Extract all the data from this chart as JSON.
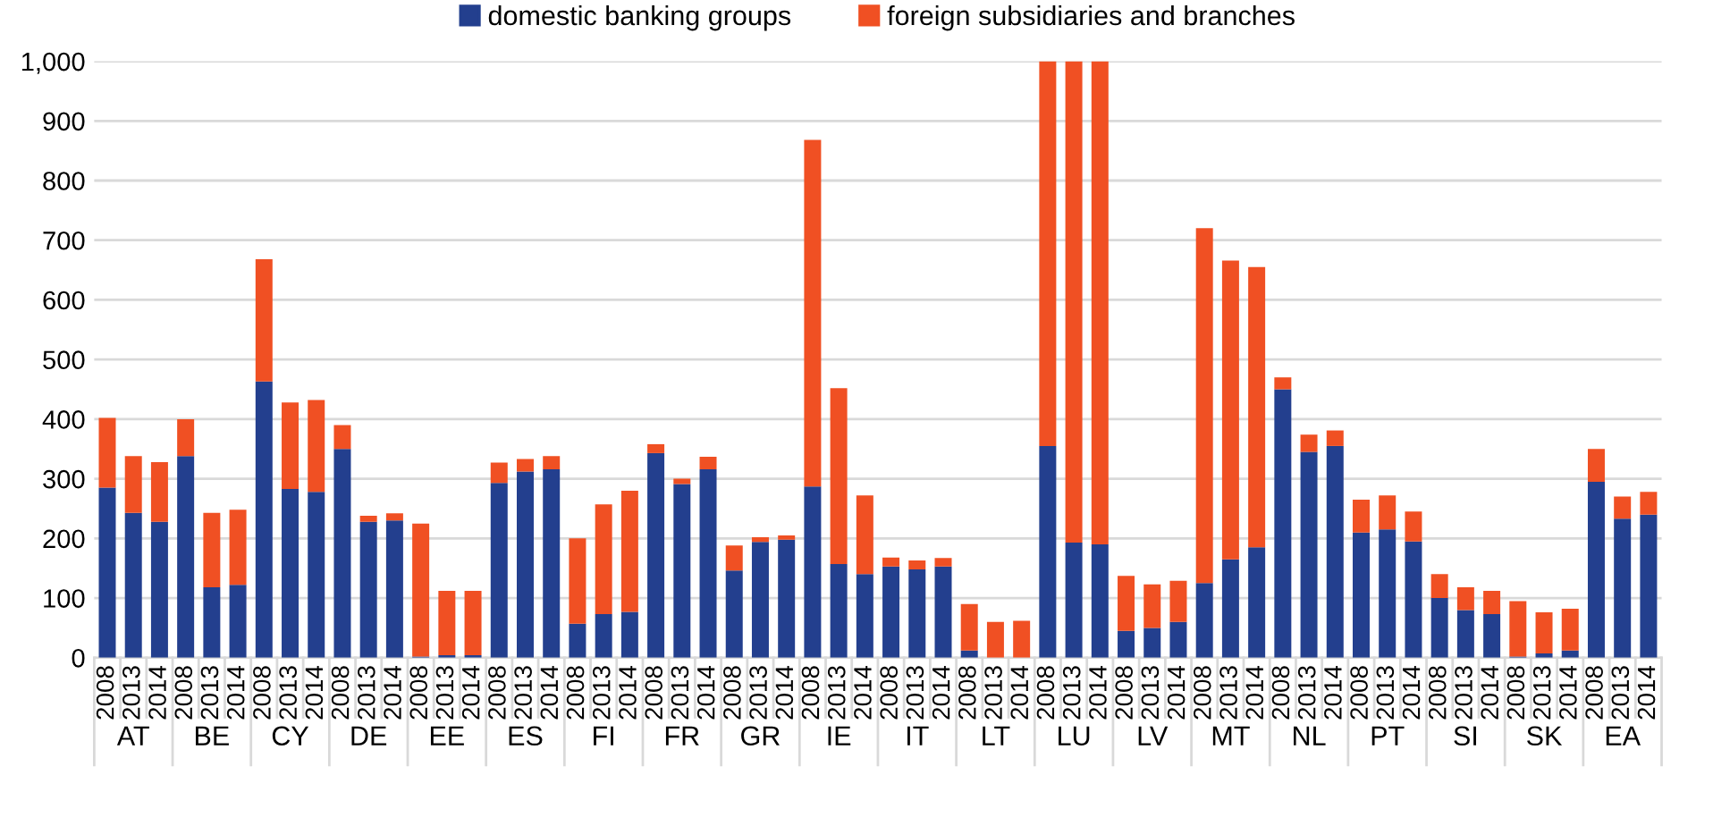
{
  "chart_data": {
    "type": "bar",
    "stacked": true,
    "categories": [
      "2008",
      "2013",
      "2014",
      "2008",
      "2013",
      "2014",
      "2008",
      "2013",
      "2014",
      "2008",
      "2013",
      "2014",
      "2008",
      "2013",
      "2014",
      "2008",
      "2013",
      "2014",
      "2008",
      "2013",
      "2014",
      "2008",
      "2013",
      "2014",
      "2008",
      "2013",
      "2014",
      "2008",
      "2013",
      "2014",
      "2008",
      "2013",
      "2014",
      "2008",
      "2013",
      "2014",
      "2008",
      "2013",
      "2014",
      "2008",
      "2013",
      "2014",
      "2008",
      "2013",
      "2014",
      "2008",
      "2013",
      "2014",
      "2008",
      "2013",
      "2014",
      "2008",
      "2013",
      "2014",
      "2008",
      "2013",
      "2014",
      "2008",
      "2013",
      "2014"
    ],
    "series": [
      {
        "name": "domestic banking groups",
        "color": "#233f8e",
        "values": [
          285,
          243,
          228,
          338,
          118,
          122,
          463,
          283,
          278,
          350,
          228,
          230,
          2,
          4,
          4,
          293,
          312,
          316,
          57,
          73,
          77,
          343,
          291,
          316,
          146,
          194,
          198,
          287,
          157,
          140,
          153,
          148,
          153,
          12,
          null,
          null,
          355,
          193,
          190,
          45,
          50,
          60,
          125,
          165,
          185,
          450,
          345,
          355,
          210,
          215,
          195,
          100,
          80,
          73,
          2,
          7,
          12,
          295,
          233,
          240
        ]
      },
      {
        "name": "foreign subsidiaries and branches",
        "color": "#f05023",
        "values": [
          117,
          95,
          100,
          62,
          125,
          126,
          205,
          145,
          154,
          40,
          10,
          12,
          223,
          108,
          108,
          34,
          21,
          22,
          143,
          184,
          203,
          15,
          9,
          21,
          42,
          8,
          7,
          581,
          295,
          132,
          15,
          15,
          14,
          78,
          60,
          62,
          645,
          807,
          810,
          92,
          73,
          69,
          595,
          501,
          470,
          20,
          29,
          26,
          55,
          57,
          50,
          40,
          38,
          39,
          93,
          69,
          70,
          55,
          37,
          38
        ]
      }
    ],
    "annotations": [
      "AT",
      "BE",
      "CY",
      "DE",
      "EE",
      "ES",
      "FI",
      "FR",
      "GR",
      "IE",
      "IT",
      "LT",
      "LU",
      "LV",
      "MT",
      "NL",
      "PT",
      "SI",
      "SK",
      "EA"
    ],
    "ylim": [
      0,
      1000
    ],
    "yticks": [
      0,
      100,
      200,
      300,
      400,
      500,
      600,
      700,
      800,
      900,
      {
        "value": 1000,
        "label": "1,000"
      }
    ],
    "grid": "y",
    "legend": "top"
  }
}
